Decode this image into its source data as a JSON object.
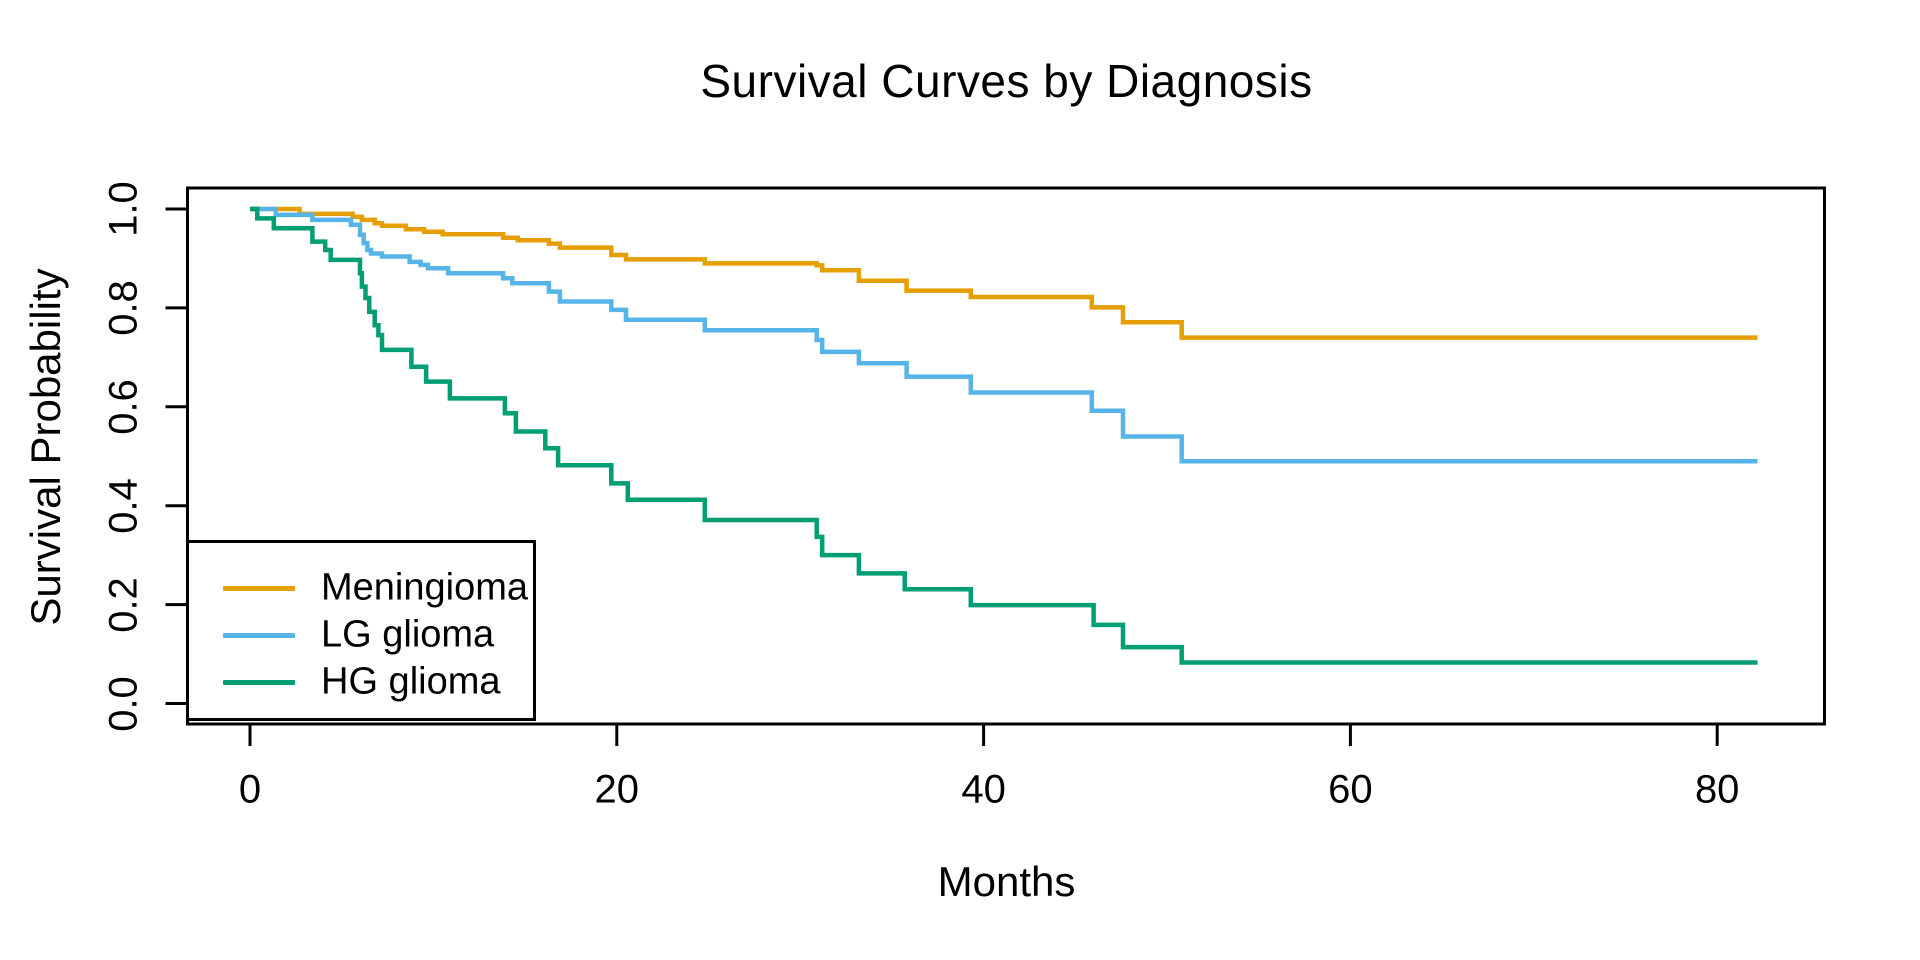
{
  "chart_data": {
    "type": "line",
    "subtype": "kaplan-meier-step",
    "title": "Survival Curves by Diagnosis",
    "xlabel": "Months",
    "ylabel": "Survival Probability",
    "xlim": [
      -3.4,
      85.9
    ],
    "ylim": [
      -0.042,
      1.042
    ],
    "grid": false,
    "x_tick_values": [
      0,
      20,
      40,
      60,
      80
    ],
    "x_tick_labels": [
      "0",
      "20",
      "40",
      "60",
      "80"
    ],
    "y_tick_values": [
      0.0,
      0.2,
      0.4,
      0.6,
      0.8,
      1.0
    ],
    "y_tick_labels": [
      "0.0",
      "0.2",
      "0.4",
      "0.6",
      "0.8",
      "1.0"
    ],
    "legend": {
      "position": "bottom-left",
      "entries": [
        "Meningioma",
        "LG glioma",
        "HG glioma"
      ]
    },
    "frame_color": "#000000",
    "series": [
      {
        "name": "Meningioma",
        "color": "#E69F00",
        "points": [
          [
            0,
            1.0
          ],
          [
            2.7,
            0.99
          ],
          [
            5.6,
            0.984
          ],
          [
            6.1,
            0.978
          ],
          [
            6.8,
            0.971
          ],
          [
            7.2,
            0.966
          ],
          [
            8.5,
            0.959
          ],
          [
            9.5,
            0.954
          ],
          [
            10.5,
            0.949
          ],
          [
            13.8,
            0.942
          ],
          [
            14.6,
            0.937
          ],
          [
            16.3,
            0.93
          ],
          [
            16.9,
            0.922
          ],
          [
            19.7,
            0.907
          ],
          [
            20.5,
            0.898
          ],
          [
            24.8,
            0.89
          ],
          [
            30.9,
            0.886
          ],
          [
            31.2,
            0.876
          ],
          [
            33.2,
            0.855
          ],
          [
            35.8,
            0.835
          ],
          [
            39.3,
            0.822
          ],
          [
            45.9,
            0.801
          ],
          [
            47.6,
            0.771
          ],
          [
            50.8,
            0.74
          ],
          [
            82.2,
            0.74
          ]
        ]
      },
      {
        "name": "LG glioma",
        "color": "#56B4E9",
        "points": [
          [
            0,
            1.0
          ],
          [
            1.4,
            0.988
          ],
          [
            3.4,
            0.978
          ],
          [
            5.5,
            0.968
          ],
          [
            6.0,
            0.948
          ],
          [
            6.2,
            0.931
          ],
          [
            6.4,
            0.917
          ],
          [
            6.6,
            0.91
          ],
          [
            7.2,
            0.904
          ],
          [
            8.7,
            0.893
          ],
          [
            9.3,
            0.887
          ],
          [
            9.7,
            0.88
          ],
          [
            10.8,
            0.87
          ],
          [
            13.8,
            0.86
          ],
          [
            14.3,
            0.85
          ],
          [
            16.3,
            0.833
          ],
          [
            16.9,
            0.813
          ],
          [
            19.7,
            0.796
          ],
          [
            20.5,
            0.776
          ],
          [
            24.8,
            0.755
          ],
          [
            30.9,
            0.735
          ],
          [
            31.2,
            0.711
          ],
          [
            33.2,
            0.688
          ],
          [
            35.8,
            0.661
          ],
          [
            39.3,
            0.629
          ],
          [
            45.9,
            0.592
          ],
          [
            47.6,
            0.54
          ],
          [
            50.8,
            0.49
          ],
          [
            82.2,
            0.49
          ]
        ]
      },
      {
        "name": "HG glioma",
        "color": "#009E73",
        "points": [
          [
            0,
            1.0
          ],
          [
            0.4,
            0.981
          ],
          [
            1.3,
            0.961
          ],
          [
            3.4,
            0.934
          ],
          [
            4.1,
            0.917
          ],
          [
            4.4,
            0.897
          ],
          [
            6.0,
            0.87
          ],
          [
            6.1,
            0.843
          ],
          [
            6.3,
            0.82
          ],
          [
            6.5,
            0.792
          ],
          [
            6.8,
            0.765
          ],
          [
            7.0,
            0.745
          ],
          [
            7.2,
            0.715
          ],
          [
            8.8,
            0.681
          ],
          [
            9.6,
            0.651
          ],
          [
            10.9,
            0.617
          ],
          [
            13.9,
            0.587
          ],
          [
            14.5,
            0.55
          ],
          [
            16.1,
            0.516
          ],
          [
            16.8,
            0.482
          ],
          [
            19.7,
            0.445
          ],
          [
            20.6,
            0.412
          ],
          [
            24.8,
            0.371
          ],
          [
            30.9,
            0.337
          ],
          [
            31.2,
            0.3
          ],
          [
            33.2,
            0.263
          ],
          [
            35.7,
            0.231
          ],
          [
            39.3,
            0.199
          ],
          [
            46.0,
            0.159
          ],
          [
            47.6,
            0.114
          ],
          [
            50.8,
            0.083
          ],
          [
            82.2,
            0.083
          ]
        ]
      }
    ]
  }
}
